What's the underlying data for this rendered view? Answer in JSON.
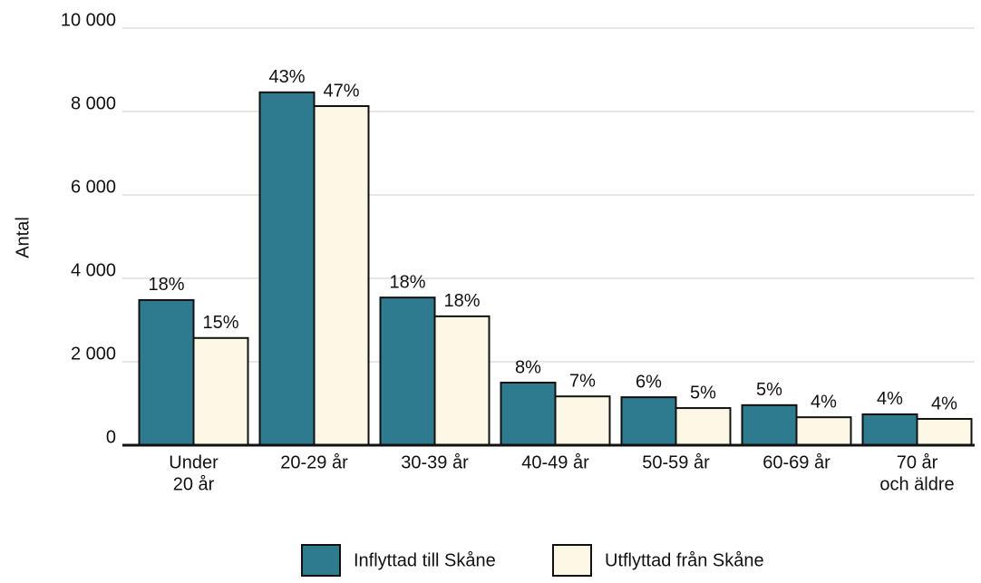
{
  "chart_data": {
    "type": "bar",
    "y_label": "Antal",
    "categories": [
      [
        "Under",
        "20 år"
      ],
      [
        "20-29 år"
      ],
      [
        "30-39 år"
      ],
      [
        "40-49 år"
      ],
      [
        "50-59 år"
      ],
      [
        "60-69 år"
      ],
      [
        "70 år",
        "och äldre"
      ]
    ],
    "series": [
      {
        "name": "Inflyttad till Skåne",
        "color": "#2e7a8e",
        "values": [
          3480,
          8460,
          3540,
          1500,
          1150,
          960,
          740
        ],
        "labels": [
          "18%",
          "43%",
          "18%",
          "8%",
          "6%",
          "5%",
          "4%"
        ]
      },
      {
        "name": "Utflyttad från Skåne",
        "color": "#fdf8e6",
        "values": [
          2570,
          8130,
          3090,
          1170,
          890,
          670,
          630
        ],
        "labels": [
          "15%",
          "47%",
          "18%",
          "7%",
          "5%",
          "4%",
          "4%"
        ]
      }
    ],
    "ylim": [
      0,
      10000
    ],
    "yticks": [
      0,
      {
        "value": 2000,
        "label": "2 000"
      },
      {
        "value": 4000,
        "label": "4 000"
      },
      {
        "value": 6000,
        "label": "6 000"
      },
      {
        "value": 8000,
        "label": "8 000"
      },
      {
        "value": 10000,
        "label": "10 000"
      }
    ],
    "grid": true
  }
}
